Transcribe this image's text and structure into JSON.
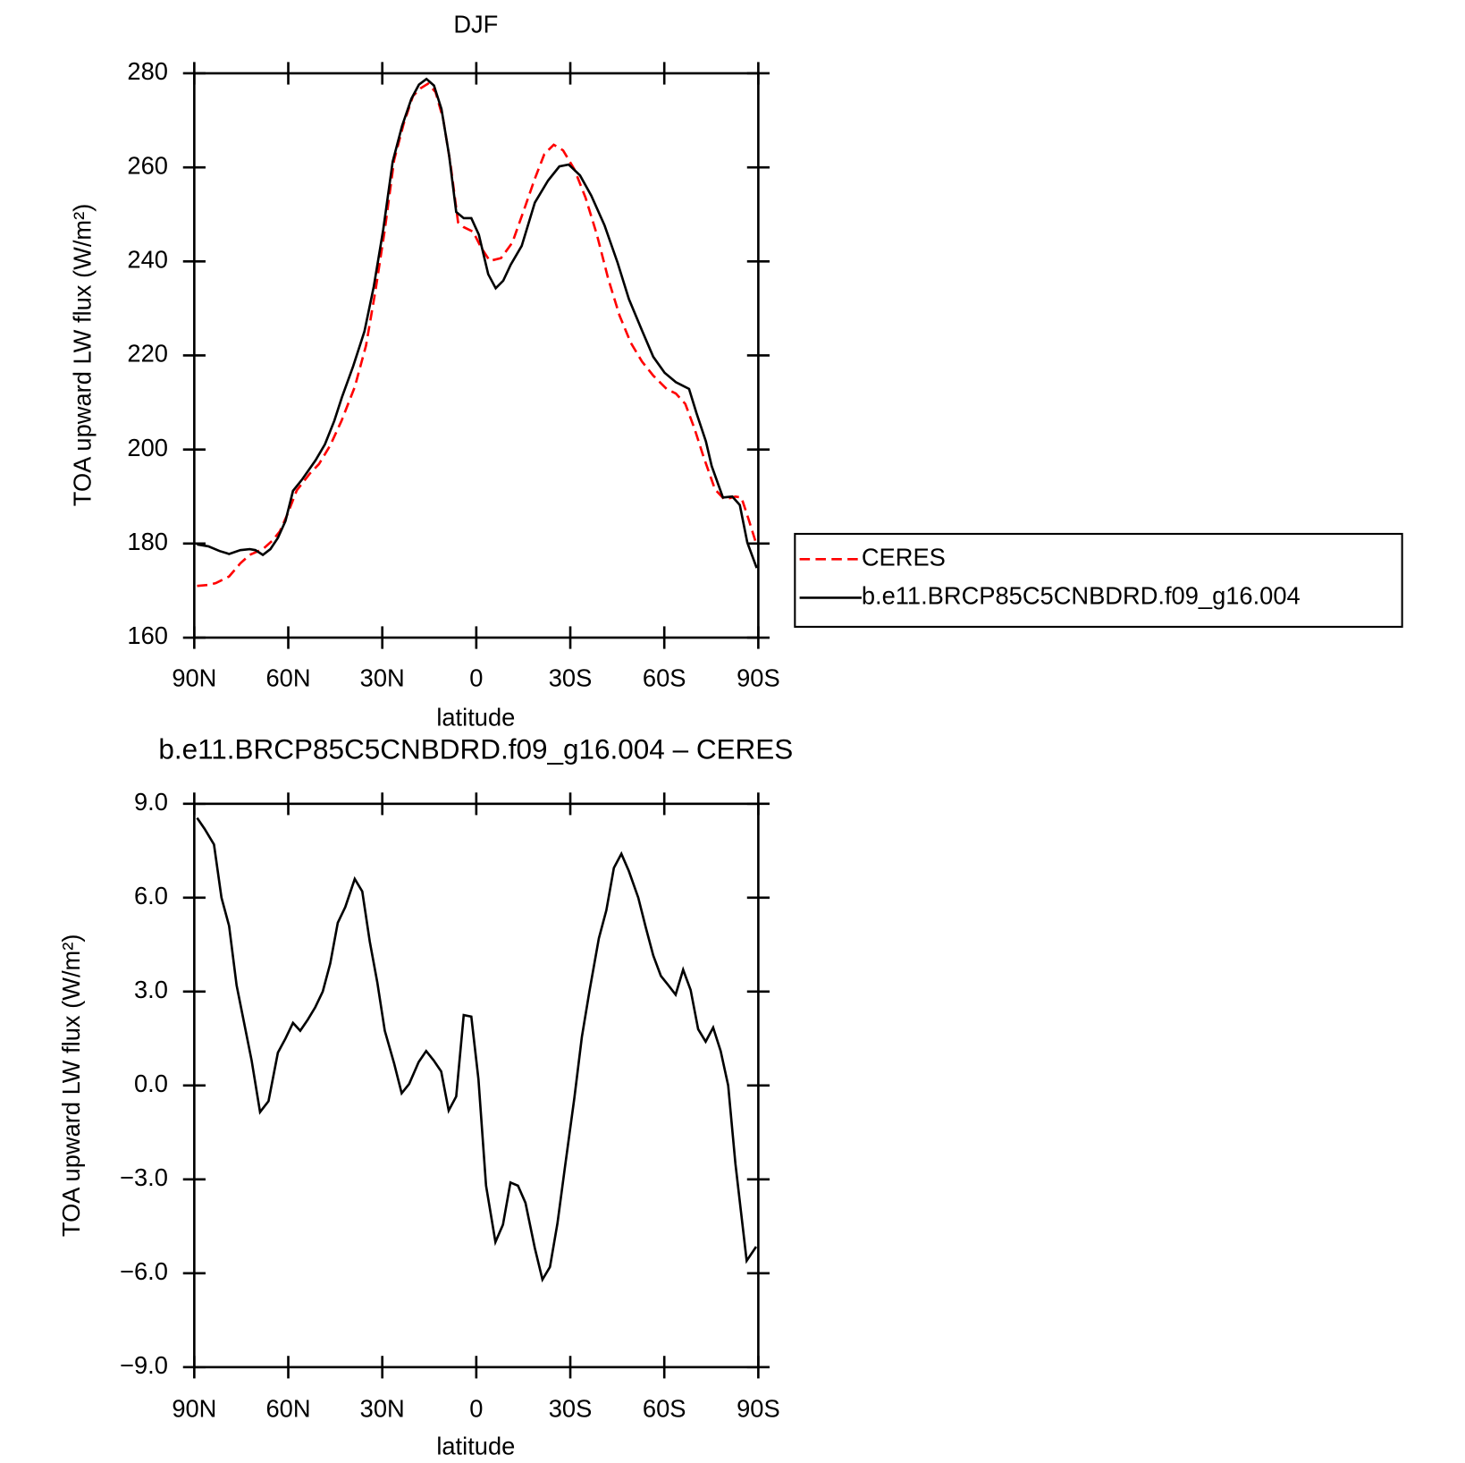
{
  "chart_data": [
    {
      "type": "line",
      "title": "DJF",
      "x_label": "latitude",
      "y_label": "TOA upward LW flux (W/m²)",
      "xlim": [
        90,
        -90
      ],
      "xticks": [
        {
          "value": 90,
          "label": "90N"
        },
        {
          "value": 60,
          "label": "60N"
        },
        {
          "value": 30,
          "label": "30N"
        },
        0,
        {
          "value": -30,
          "label": "30S"
        },
        {
          "value": -60,
          "label": "60S"
        },
        {
          "value": -90,
          "label": "90S"
        }
      ],
      "ylim": [
        160,
        280
      ],
      "yticks": [
        160,
        180,
        200,
        220,
        240,
        260,
        280
      ],
      "legend": "right",
      "series": [
        {
          "name": "CERES",
          "color": "#ff0000",
          "linestyle": "dashed",
          "x": [
            89.1,
            85.5,
            83.1,
            78.9,
            75.3,
            72.3,
            68.1,
            65.1,
            62.7,
            60.3,
            57.3,
            53.1,
            50.2,
            46.6,
            43.0,
            38.8,
            35.2,
            32.2,
            29.2,
            26.2,
            23.2,
            20.2,
            17.8,
            15.4,
            13.0,
            10.6,
            8.2,
            5.8,
            4.0,
            1.0,
            -1.4,
            -4.3,
            -7.9,
            -11.5,
            -15.1,
            -18.7,
            -21.7,
            -24.7,
            -27.7,
            -31.3,
            -34.9,
            -38.5,
            -42.1,
            -45.7,
            -49.3,
            -52.9,
            -56.5,
            -60.7,
            -63.7,
            -66.7,
            -69.6,
            -72.6,
            -76.2,
            -79.2,
            -82.7,
            -84.6,
            -86.9,
            -89.3
          ],
          "values": [
            171,
            171.2,
            171.6,
            173,
            175.8,
            177.6,
            178.8,
            180.6,
            182.6,
            186.2,
            191.3,
            194.9,
            196.9,
            200.9,
            206.1,
            213.3,
            222.1,
            233.7,
            246.7,
            261.6,
            269.2,
            275.2,
            276.8,
            277.8,
            276,
            270.4,
            260.6,
            248.3,
            247.3,
            246.3,
            243.1,
            240.1,
            240.7,
            244,
            250.7,
            257.6,
            262.8,
            264.8,
            263.6,
            259.6,
            253.5,
            245.7,
            236.3,
            228.5,
            222.7,
            218.7,
            215.7,
            212.9,
            211.9,
            209.7,
            204.5,
            198.3,
            191.5,
            189.4,
            190,
            189.8,
            185.2,
            180
          ]
        },
        {
          "name": "b.e11.BRCP85C5CNBDRD.f09_g16.004",
          "color": "#000000",
          "linestyle": "solid",
          "x": [
            89.1,
            85.5,
            81.9,
            78.9,
            75.3,
            72.3,
            70.5,
            68.1,
            65.7,
            63.3,
            60.9,
            58.5,
            55.5,
            51.3,
            48.3,
            45.3,
            42.9,
            39.3,
            35.7,
            32.7,
            29.7,
            26.7,
            23.7,
            20.7,
            18.3,
            15.9,
            13.5,
            11.1,
            8.7,
            6.4,
            4.0,
            1.6,
            -0.8,
            -3.8,
            -6.2,
            -8.6,
            -11.0,
            -14.5,
            -18.7,
            -22.9,
            -26.5,
            -29.5,
            -33.1,
            -36.7,
            -40.9,
            -45.1,
            -48.7,
            -52.9,
            -56.5,
            -60.1,
            -63.7,
            -67.9,
            -70.3,
            -73.3,
            -75.1,
            -78.7,
            -81.7,
            -84.1,
            -86.5,
            -89.5
          ],
          "values": [
            179.8,
            179.4,
            178.4,
            177.8,
            178.6,
            178.8,
            178.6,
            177.6,
            178.8,
            181.2,
            184.8,
            191.2,
            193.7,
            197.7,
            201.1,
            206.1,
            211.1,
            217.7,
            225.1,
            234.7,
            246.7,
            261.2,
            268.8,
            274.6,
            277.6,
            278.8,
            277.4,
            272.4,
            262.6,
            250.5,
            249.2,
            249.2,
            245.7,
            237.3,
            234.3,
            235.9,
            239.3,
            243.3,
            252.5,
            257.2,
            260.2,
            260.6,
            258.3,
            254,
            247.7,
            239.7,
            232,
            225.3,
            219.7,
            216.3,
            214.3,
            212.9,
            207.7,
            201.7,
            196.5,
            189.8,
            190,
            188.2,
            180.2,
            174.8
          ]
        }
      ]
    },
    {
      "type": "line",
      "title": "b.e11.BRCP85C5CNBDRD.f09_g16.004 – CERES",
      "x_label": "latitude",
      "y_label": "TOA upward LW flux (W/m²)",
      "xlim": [
        90,
        -90
      ],
      "xticks": [
        {
          "value": 90,
          "label": "90N"
        },
        {
          "value": 60,
          "label": "60N"
        },
        {
          "value": 30,
          "label": "30N"
        },
        0,
        {
          "value": -30,
          "label": "30S"
        },
        {
          "value": -60,
          "label": "60S"
        },
        {
          "value": -90,
          "label": "90S"
        }
      ],
      "ylim": [
        -9,
        9
      ],
      "yticks": [
        {
          "value": -9,
          "label": "−9.0"
        },
        {
          "value": -6,
          "label": "−6.0"
        },
        {
          "value": -3,
          "label": "−3.0"
        },
        {
          "value": 0,
          "label": "0.0"
        },
        {
          "value": 3,
          "label": "3.0"
        },
        {
          "value": 6,
          "label": "6.0"
        },
        {
          "value": 9,
          "label": "9.0"
        }
      ],
      "series": [
        {
          "color": "#000000",
          "linestyle": "solid",
          "x": [
            89.1,
            86.7,
            83.7,
            81.3,
            78.9,
            76.5,
            74.1,
            71.7,
            69.0,
            66.3,
            63.3,
            60.9,
            58.5,
            56.2,
            53.8,
            51.4,
            49.0,
            46.6,
            44.2,
            41.8,
            38.8,
            36.4,
            34.0,
            31.6,
            29.2,
            26.2,
            23.8,
            21.4,
            18.4,
            16.0,
            13.6,
            11.2,
            8.8,
            6.4,
            4.0,
            1.6,
            -0.7,
            -3.1,
            -6.1,
            -8.5,
            -10.9,
            -13.3,
            -15.7,
            -18.7,
            -21.1,
            -23.5,
            -25.9,
            -28.3,
            -31.3,
            -33.7,
            -36.1,
            -39.1,
            -41.5,
            -43.9,
            -46.3,
            -48.7,
            -51.7,
            -54.1,
            -56.5,
            -58.9,
            -61.3,
            -63.6,
            -66.0,
            -68.4,
            -70.8,
            -73.2,
            -75.6,
            -78.0,
            -80.4,
            -82.7,
            -86.3,
            -89.3
          ],
          "values": [
            8.55,
            8.2,
            7.7,
            6.0,
            5.1,
            3.2,
            2.0,
            0.8,
            -0.85,
            -0.5,
            1.05,
            1.5,
            2.0,
            1.75,
            2.1,
            2.5,
            3.0,
            3.9,
            5.2,
            5.7,
            6.6,
            6.2,
            4.6,
            3.3,
            1.75,
            0.7,
            -0.25,
            0.05,
            0.75,
            1.1,
            0.8,
            0.45,
            -0.8,
            -0.35,
            2.25,
            2.2,
            0.2,
            -3.2,
            -5.0,
            -4.45,
            -3.1,
            -3.2,
            -3.75,
            -5.2,
            -6.2,
            -5.8,
            -4.4,
            -2.6,
            -0.4,
            1.55,
            3.0,
            4.7,
            5.6,
            6.95,
            7.4,
            6.85,
            6.0,
            5.05,
            4.15,
            3.5,
            3.2,
            2.9,
            3.7,
            3.05,
            1.8,
            1.4,
            1.85,
            1.1,
            0.0,
            -2.5,
            -5.6,
            -5.15
          ]
        }
      ]
    }
  ]
}
